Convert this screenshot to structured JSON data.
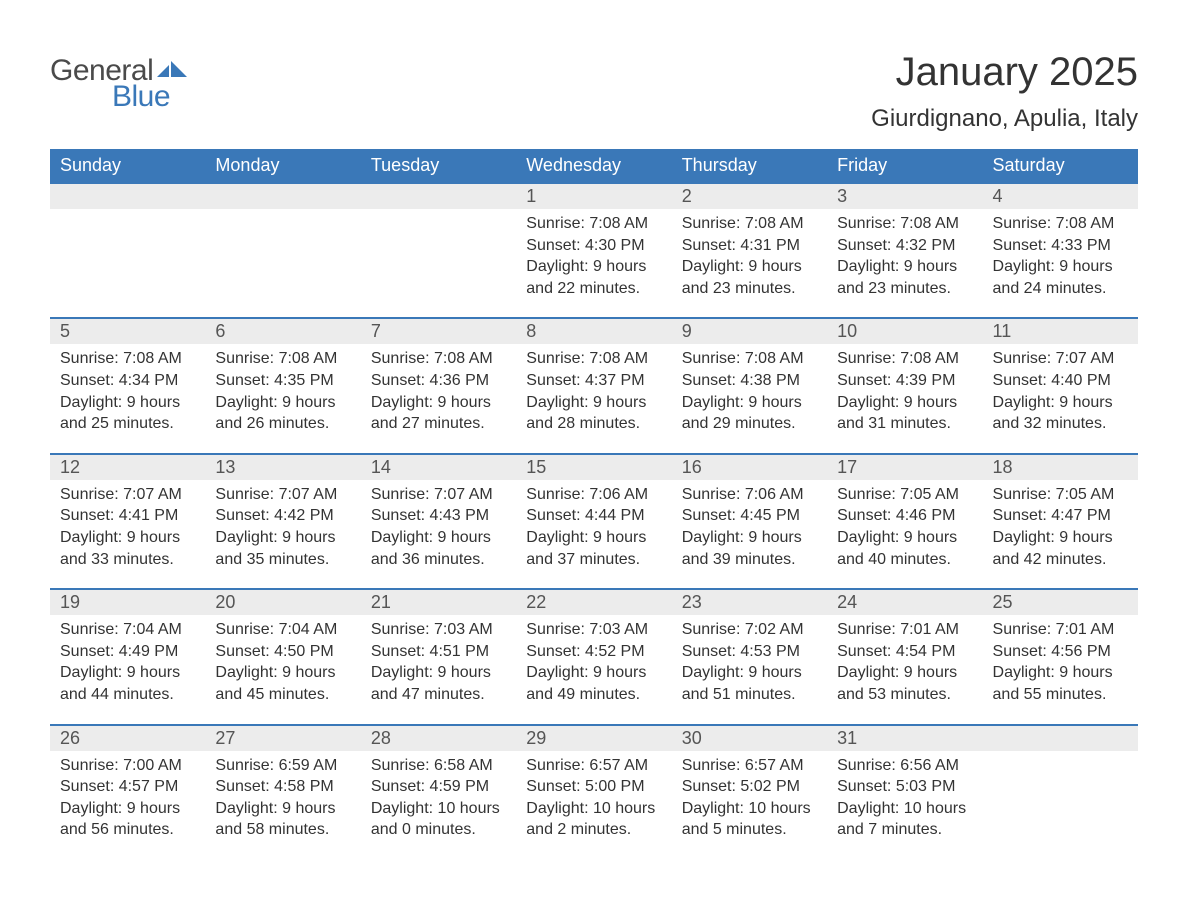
{
  "logo": {
    "text1": "General",
    "text2": "Blue",
    "icon_color": "#3a78b8",
    "text1_color": "#4a4a4a"
  },
  "title": "January 2025",
  "location": "Giurdignano, Apulia, Italy",
  "colors": {
    "header_bg": "#3a78b8",
    "header_text": "#ffffff",
    "day_bg": "#ececec",
    "body_text": "#333333",
    "row_border": "#3a78b8",
    "page_bg": "#ffffff"
  },
  "fonts": {
    "title_size": 40,
    "location_size": 24,
    "header_size": 18,
    "daynum_size": 18,
    "cell_size": 16
  },
  "day_headers": [
    "Sunday",
    "Monday",
    "Tuesday",
    "Wednesday",
    "Thursday",
    "Friday",
    "Saturday"
  ],
  "weeks": [
    [
      null,
      null,
      null,
      {
        "n": "1",
        "sr": "Sunrise: 7:08 AM",
        "ss": "Sunset: 4:30 PM",
        "d1": "Daylight: 9 hours",
        "d2": "and 22 minutes."
      },
      {
        "n": "2",
        "sr": "Sunrise: 7:08 AM",
        "ss": "Sunset: 4:31 PM",
        "d1": "Daylight: 9 hours",
        "d2": "and 23 minutes."
      },
      {
        "n": "3",
        "sr": "Sunrise: 7:08 AM",
        "ss": "Sunset: 4:32 PM",
        "d1": "Daylight: 9 hours",
        "d2": "and 23 minutes."
      },
      {
        "n": "4",
        "sr": "Sunrise: 7:08 AM",
        "ss": "Sunset: 4:33 PM",
        "d1": "Daylight: 9 hours",
        "d2": "and 24 minutes."
      }
    ],
    [
      {
        "n": "5",
        "sr": "Sunrise: 7:08 AM",
        "ss": "Sunset: 4:34 PM",
        "d1": "Daylight: 9 hours",
        "d2": "and 25 minutes."
      },
      {
        "n": "6",
        "sr": "Sunrise: 7:08 AM",
        "ss": "Sunset: 4:35 PM",
        "d1": "Daylight: 9 hours",
        "d2": "and 26 minutes."
      },
      {
        "n": "7",
        "sr": "Sunrise: 7:08 AM",
        "ss": "Sunset: 4:36 PM",
        "d1": "Daylight: 9 hours",
        "d2": "and 27 minutes."
      },
      {
        "n": "8",
        "sr": "Sunrise: 7:08 AM",
        "ss": "Sunset: 4:37 PM",
        "d1": "Daylight: 9 hours",
        "d2": "and 28 minutes."
      },
      {
        "n": "9",
        "sr": "Sunrise: 7:08 AM",
        "ss": "Sunset: 4:38 PM",
        "d1": "Daylight: 9 hours",
        "d2": "and 29 minutes."
      },
      {
        "n": "10",
        "sr": "Sunrise: 7:08 AM",
        "ss": "Sunset: 4:39 PM",
        "d1": "Daylight: 9 hours",
        "d2": "and 31 minutes."
      },
      {
        "n": "11",
        "sr": "Sunrise: 7:07 AM",
        "ss": "Sunset: 4:40 PM",
        "d1": "Daylight: 9 hours",
        "d2": "and 32 minutes."
      }
    ],
    [
      {
        "n": "12",
        "sr": "Sunrise: 7:07 AM",
        "ss": "Sunset: 4:41 PM",
        "d1": "Daylight: 9 hours",
        "d2": "and 33 minutes."
      },
      {
        "n": "13",
        "sr": "Sunrise: 7:07 AM",
        "ss": "Sunset: 4:42 PM",
        "d1": "Daylight: 9 hours",
        "d2": "and 35 minutes."
      },
      {
        "n": "14",
        "sr": "Sunrise: 7:07 AM",
        "ss": "Sunset: 4:43 PM",
        "d1": "Daylight: 9 hours",
        "d2": "and 36 minutes."
      },
      {
        "n": "15",
        "sr": "Sunrise: 7:06 AM",
        "ss": "Sunset: 4:44 PM",
        "d1": "Daylight: 9 hours",
        "d2": "and 37 minutes."
      },
      {
        "n": "16",
        "sr": "Sunrise: 7:06 AM",
        "ss": "Sunset: 4:45 PM",
        "d1": "Daylight: 9 hours",
        "d2": "and 39 minutes."
      },
      {
        "n": "17",
        "sr": "Sunrise: 7:05 AM",
        "ss": "Sunset: 4:46 PM",
        "d1": "Daylight: 9 hours",
        "d2": "and 40 minutes."
      },
      {
        "n": "18",
        "sr": "Sunrise: 7:05 AM",
        "ss": "Sunset: 4:47 PM",
        "d1": "Daylight: 9 hours",
        "d2": "and 42 minutes."
      }
    ],
    [
      {
        "n": "19",
        "sr": "Sunrise: 7:04 AM",
        "ss": "Sunset: 4:49 PM",
        "d1": "Daylight: 9 hours",
        "d2": "and 44 minutes."
      },
      {
        "n": "20",
        "sr": "Sunrise: 7:04 AM",
        "ss": "Sunset: 4:50 PM",
        "d1": "Daylight: 9 hours",
        "d2": "and 45 minutes."
      },
      {
        "n": "21",
        "sr": "Sunrise: 7:03 AM",
        "ss": "Sunset: 4:51 PM",
        "d1": "Daylight: 9 hours",
        "d2": "and 47 minutes."
      },
      {
        "n": "22",
        "sr": "Sunrise: 7:03 AM",
        "ss": "Sunset: 4:52 PM",
        "d1": "Daylight: 9 hours",
        "d2": "and 49 minutes."
      },
      {
        "n": "23",
        "sr": "Sunrise: 7:02 AM",
        "ss": "Sunset: 4:53 PM",
        "d1": "Daylight: 9 hours",
        "d2": "and 51 minutes."
      },
      {
        "n": "24",
        "sr": "Sunrise: 7:01 AM",
        "ss": "Sunset: 4:54 PM",
        "d1": "Daylight: 9 hours",
        "d2": "and 53 minutes."
      },
      {
        "n": "25",
        "sr": "Sunrise: 7:01 AM",
        "ss": "Sunset: 4:56 PM",
        "d1": "Daylight: 9 hours",
        "d2": "and 55 minutes."
      }
    ],
    [
      {
        "n": "26",
        "sr": "Sunrise: 7:00 AM",
        "ss": "Sunset: 4:57 PM",
        "d1": "Daylight: 9 hours",
        "d2": "and 56 minutes."
      },
      {
        "n": "27",
        "sr": "Sunrise: 6:59 AM",
        "ss": "Sunset: 4:58 PM",
        "d1": "Daylight: 9 hours",
        "d2": "and 58 minutes."
      },
      {
        "n": "28",
        "sr": "Sunrise: 6:58 AM",
        "ss": "Sunset: 4:59 PM",
        "d1": "Daylight: 10 hours",
        "d2": "and 0 minutes."
      },
      {
        "n": "29",
        "sr": "Sunrise: 6:57 AM",
        "ss": "Sunset: 5:00 PM",
        "d1": "Daylight: 10 hours",
        "d2": "and 2 minutes."
      },
      {
        "n": "30",
        "sr": "Sunrise: 6:57 AM",
        "ss": "Sunset: 5:02 PM",
        "d1": "Daylight: 10 hours",
        "d2": "and 5 minutes."
      },
      {
        "n": "31",
        "sr": "Sunrise: 6:56 AM",
        "ss": "Sunset: 5:03 PM",
        "d1": "Daylight: 10 hours",
        "d2": "and 7 minutes."
      },
      null
    ]
  ]
}
